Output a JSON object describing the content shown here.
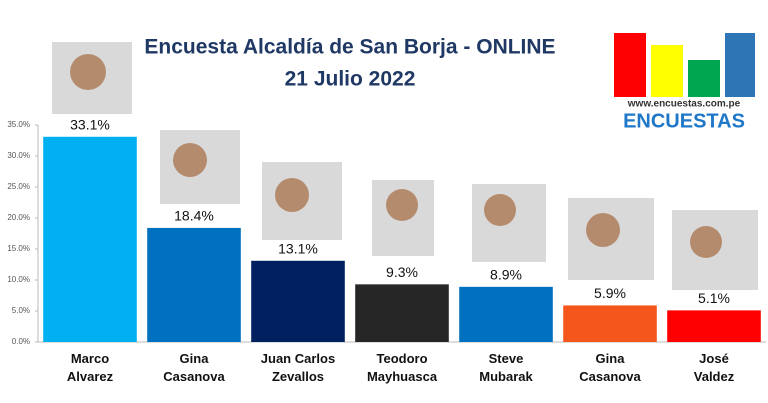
{
  "chart_data": {
    "type": "bar",
    "title": "Encuesta Alcaldía de San Borja - ONLINE",
    "subtitle": "21 Julio 2022",
    "brand_url": "www.encuestas.com.pe",
    "brand_name": "ENCUESTAS",
    "categories": [
      "Marco Alvarez",
      "Gina Casanova",
      "Juan Carlos Zevallos",
      "Teodoro Mayhuasca",
      "Steve Mubarak",
      "Gina Casanova",
      "José Valdez"
    ],
    "values": [
      33.1,
      18.4,
      13.1,
      9.3,
      8.9,
      5.9,
      5.1
    ],
    "value_labels": [
      "33.1%",
      "18.4%",
      "13.1%",
      "9.3%",
      "8.9%",
      "5.9%",
      "5.1%"
    ],
    "colors": [
      "#00b0f0",
      "#0070c0",
      "#002060",
      "#262626",
      "#0070c0",
      "#f4561b",
      "#ff0000"
    ],
    "ylim": [
      0,
      35
    ],
    "yticks": [
      {
        "value": 0,
        "label": "0.0%"
      },
      {
        "value": 5,
        "label": "5.0%"
      },
      {
        "value": 10,
        "label": "10.0%"
      },
      {
        "value": 15,
        "label": "15.0%"
      },
      {
        "value": 20,
        "label": "20.0%"
      },
      {
        "value": 25,
        "label": "25.0%"
      },
      {
        "value": 30,
        "label": "30.0%"
      },
      {
        "value": 35,
        "label": "35.0%"
      }
    ]
  }
}
